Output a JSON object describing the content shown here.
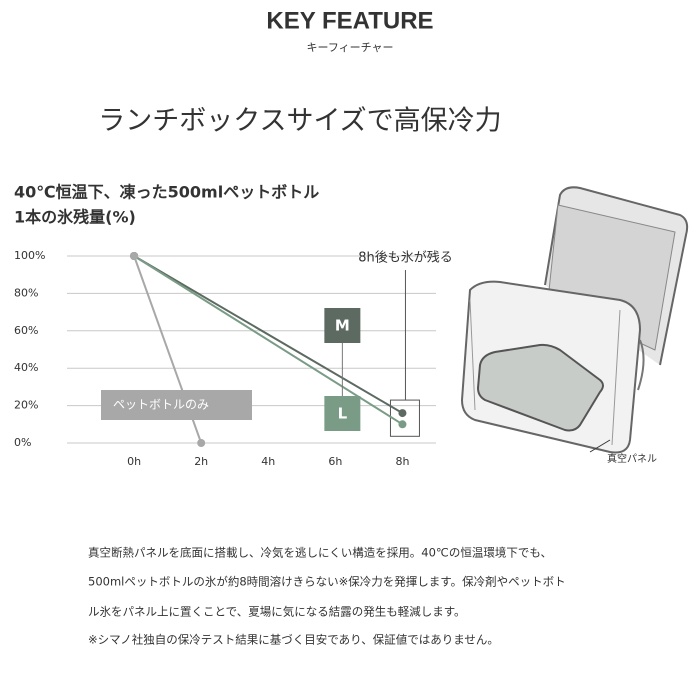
{
  "header": {
    "title": "KEY FEATURE",
    "subtitle": "キーフィーチャー"
  },
  "heading": "ランチボックスサイズで高保冷力",
  "chart_data": {
    "type": "line",
    "title_lines": [
      "40℃恒温下、凍った500mlペットボトル",
      "1本の氷残量(%)"
    ],
    "annotation": "8h後も氷が残る",
    "xlim": [
      -2,
      9
    ],
    "xticks": [
      {
        "value": 0,
        "label": "0h"
      },
      {
        "value": 2,
        "label": "2h"
      },
      {
        "value": 4,
        "label": "4h"
      },
      {
        "value": 6,
        "label": "6h"
      },
      {
        "value": 8,
        "label": "8h"
      }
    ],
    "ylim": [
      0,
      100
    ],
    "yticks": [
      {
        "value": 0,
        "label": "0%"
      },
      {
        "value": 20,
        "label": "20%"
      },
      {
        "value": 40,
        "label": "40%"
      },
      {
        "value": 60,
        "label": "60%"
      },
      {
        "value": 80,
        "label": "80%"
      },
      {
        "value": 100,
        "label": "100%"
      }
    ],
    "grid": true,
    "series": [
      {
        "name": "M",
        "color": "#5c6a61",
        "x": [
          0,
          8
        ],
        "values": [
          100,
          16
        ]
      },
      {
        "name": "L",
        "color": "#7a9c86",
        "x": [
          0,
          8
        ],
        "values": [
          100,
          10
        ]
      },
      {
        "name": "ペットボトルのみ",
        "color": "#a8a8a8",
        "x": [
          0,
          2
        ],
        "values": [
          100,
          0
        ]
      }
    ]
  },
  "illustration": {
    "label": "真空パネル"
  },
  "body": [
    "真空断熱パネルを底面に搭載し、冷気を逃しにくい構造を採用。40℃の恒温環境下でも、",
    "500mlペットボトルの氷が約8時間溶けきらない※保冷力を発揮します。保冷剤やペットボト",
    "ル氷をパネル上に置くことで、夏場に気になる結露の発生も軽減します。",
    "※シマノ社独自の保冷テスト結果に基づく目安であり、保証値ではありません。"
  ]
}
